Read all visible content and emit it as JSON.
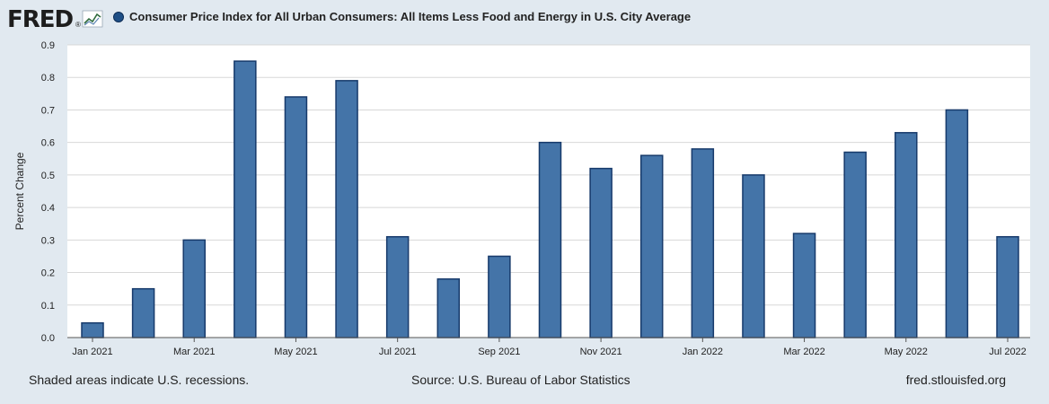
{
  "header": {
    "logo_text": "FRED",
    "logo_registered": "®",
    "logo_icon": "line-chart-icon",
    "legend_marker_color": "#1f4f86"
  },
  "chart_data": {
    "type": "bar",
    "title": "Consumer Price Index for All Urban Consumers: All Items Less Food and Energy in U.S. City Average",
    "xlabel": "",
    "ylabel": "Percent Change",
    "ylim": [
      0,
      0.9
    ],
    "yticks": [
      "0.0",
      "0.1",
      "0.2",
      "0.3",
      "0.4",
      "0.5",
      "0.6",
      "0.7",
      "0.8",
      "0.9"
    ],
    "grid": true,
    "categories": [
      "Jan 2021",
      "Feb 2021",
      "Mar 2021",
      "Apr 2021",
      "May 2021",
      "Jun 2021",
      "Jul 2021",
      "Aug 2021",
      "Sep 2021",
      "Oct 2021",
      "Nov 2021",
      "Dec 2021",
      "Jan 2022",
      "Feb 2022",
      "Mar 2022",
      "Apr 2022",
      "May 2022",
      "Jun 2022",
      "Jul 2022"
    ],
    "tick_labels": [
      "Jan 2021",
      "",
      "Mar 2021",
      "",
      "May 2021",
      "",
      "Jul 2021",
      "",
      "Sep 2021",
      "",
      "Nov 2021",
      "",
      "Jan 2022",
      "",
      "Mar 2022",
      "",
      "May 2022",
      "",
      "Jul 2022"
    ],
    "values": [
      0.045,
      0.15,
      0.3,
      0.85,
      0.74,
      0.79,
      0.31,
      0.18,
      0.25,
      0.6,
      0.52,
      0.56,
      0.58,
      0.5,
      0.32,
      0.57,
      0.63,
      0.7,
      0.31
    ],
    "bar_color": "#4474a8",
    "bar_edge_color": "#173a6b"
  },
  "footer": {
    "recessions_note": "Shaded areas indicate U.S. recessions.",
    "source": "Source: U.S. Bureau of Labor Statistics",
    "site": "fred.stlouisfed.org"
  }
}
